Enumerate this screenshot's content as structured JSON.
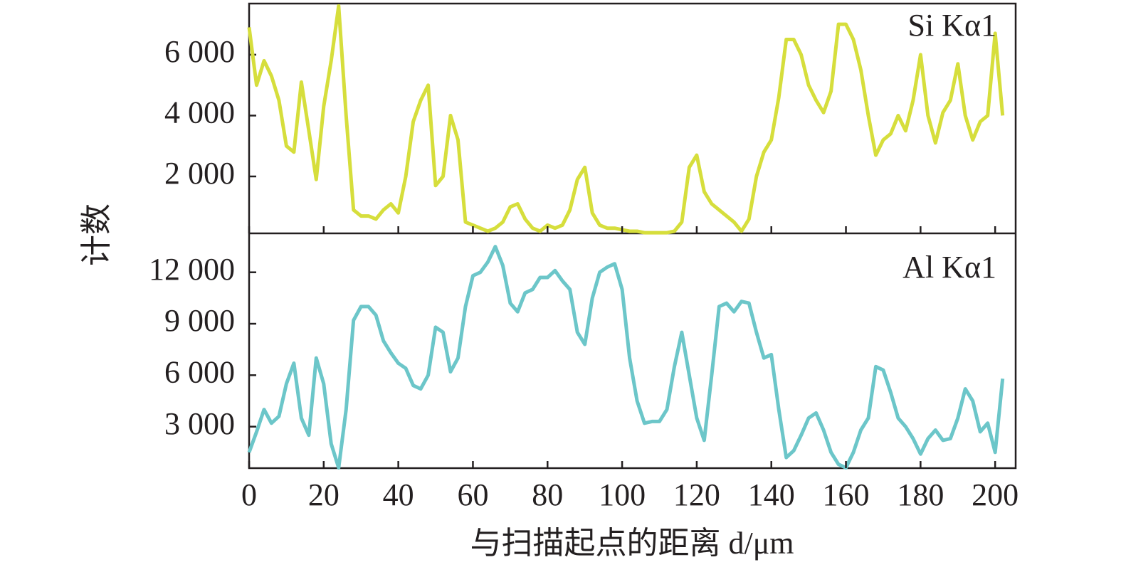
{
  "chart_data": [
    {
      "type": "line",
      "ylabel": "计数",
      "x": [
        0,
        2,
        4,
        6,
        8,
        10,
        12,
        14,
        16,
        18,
        20,
        22,
        24,
        26,
        28,
        30,
        32,
        34,
        36,
        38,
        40,
        42,
        44,
        46,
        48,
        50,
        52,
        54,
        56,
        58,
        60,
        62,
        64,
        66,
        68,
        70,
        72,
        74,
        76,
        78,
        80,
        82,
        84,
        86,
        88,
        90,
        92,
        94,
        96,
        98,
        100,
        102,
        104,
        106,
        108,
        110,
        112,
        114,
        116,
        118,
        120,
        122,
        124,
        126,
        128,
        130,
        132,
        134,
        136,
        138,
        140,
        142,
        144,
        146,
        148,
        150,
        152,
        154,
        156,
        158,
        160,
        162,
        164,
        166,
        168,
        170,
        172,
        174,
        176,
        178,
        180,
        182,
        184,
        186,
        188,
        190,
        192,
        194,
        196,
        198,
        200,
        202
      ],
      "series": [
        {
          "name": "Si Kα1",
          "color": "#d6de3c",
          "values": [
            6900,
            5000,
            5800,
            5300,
            4500,
            3000,
            2800,
            5100,
            3500,
            1900,
            4300,
            5800,
            7600,
            4000,
            900,
            700,
            700,
            600,
            900,
            1100,
            800,
            2000,
            3800,
            4500,
            5000,
            1700,
            2000,
            4000,
            3200,
            500,
            400,
            300,
            200,
            300,
            500,
            1000,
            1100,
            600,
            300,
            200,
            400,
            300,
            400,
            900,
            1900,
            2300,
            800,
            400,
            300,
            300,
            250,
            200,
            200,
            150,
            150,
            150,
            150,
            200,
            500,
            2300,
            2700,
            1500,
            1100,
            900,
            700,
            500,
            200,
            600,
            2000,
            2800,
            3200,
            4600,
            6500,
            6500,
            6000,
            5000,
            4500,
            4100,
            4800,
            7000,
            7000,
            6500,
            5500,
            4000,
            2700,
            3200,
            3400,
            4000,
            3500,
            4500,
            6000,
            4000,
            3100,
            4100,
            4500,
            5700,
            4000,
            3200,
            3800,
            4000,
            6700,
            4000
          ]
        }
      ],
      "xlim": [
        0,
        205.5
      ],
      "ylim": [
        130,
        7680
      ],
      "yticks": [
        {
          "value": 2000,
          "label": "2 000"
        },
        {
          "value": 4000,
          "label": "4 000"
        },
        {
          "value": 6000,
          "label": "6 000"
        }
      ]
    },
    {
      "type": "line",
      "xlabel": "与扫描起点的距离 d/μm",
      "x": [
        0,
        2,
        4,
        6,
        8,
        10,
        12,
        14,
        16,
        18,
        20,
        22,
        24,
        26,
        28,
        30,
        32,
        34,
        36,
        38,
        40,
        42,
        44,
        46,
        48,
        50,
        52,
        54,
        56,
        58,
        60,
        62,
        64,
        66,
        68,
        70,
        72,
        74,
        76,
        78,
        80,
        82,
        84,
        86,
        88,
        90,
        92,
        94,
        96,
        98,
        100,
        102,
        104,
        106,
        108,
        110,
        112,
        114,
        116,
        118,
        120,
        122,
        124,
        126,
        128,
        130,
        132,
        134,
        136,
        138,
        140,
        142,
        144,
        146,
        148,
        150,
        152,
        154,
        156,
        158,
        160,
        162,
        164,
        166,
        168,
        170,
        172,
        174,
        176,
        178,
        180,
        182,
        184,
        186,
        188,
        190,
        192,
        194,
        196,
        198,
        200,
        202
      ],
      "series": [
        {
          "name": "Al Kα1",
          "color": "#6cc6c9",
          "values": [
            1500,
            2700,
            4000,
            3200,
            3600,
            5500,
            6700,
            3500,
            2500,
            7000,
            5500,
            2000,
            600,
            4000,
            9200,
            10000,
            10000,
            9500,
            8000,
            7300,
            6700,
            6400,
            5400,
            5200,
            6000,
            8800,
            8500,
            6200,
            7000,
            10000,
            11800,
            12000,
            12600,
            13500,
            12400,
            10200,
            9700,
            10800,
            11000,
            11700,
            11700,
            12100,
            11500,
            11000,
            8500,
            7800,
            10500,
            12000,
            12300,
            12500,
            11000,
            7000,
            4500,
            3200,
            3300,
            3300,
            4000,
            6500,
            8500,
            6000,
            3500,
            2200,
            6000,
            10000,
            10200,
            9700,
            10300,
            10200,
            8500,
            7000,
            7200,
            4000,
            1200,
            1600,
            2500,
            3500,
            3800,
            2800,
            1500,
            800,
            600,
            1500,
            2800,
            3500,
            6500,
            6300,
            5000,
            3500,
            3000,
            2300,
            1400,
            2300,
            2800,
            2200,
            2300,
            3500,
            5200,
            4500,
            2700,
            3200,
            1500,
            5800
          ]
        }
      ],
      "xlim": [
        0,
        205.5
      ],
      "xticks": [
        0,
        20,
        40,
        60,
        80,
        100,
        120,
        140,
        160,
        180,
        200
      ],
      "ylim": [
        580,
        14270
      ],
      "yticks": [
        {
          "value": 3000,
          "label": "3 000"
        },
        {
          "value": 6000,
          "label": "6 000"
        },
        {
          "value": 9000,
          "label": "9 000"
        },
        {
          "value": 12000,
          "label": "12 000"
        }
      ]
    }
  ]
}
